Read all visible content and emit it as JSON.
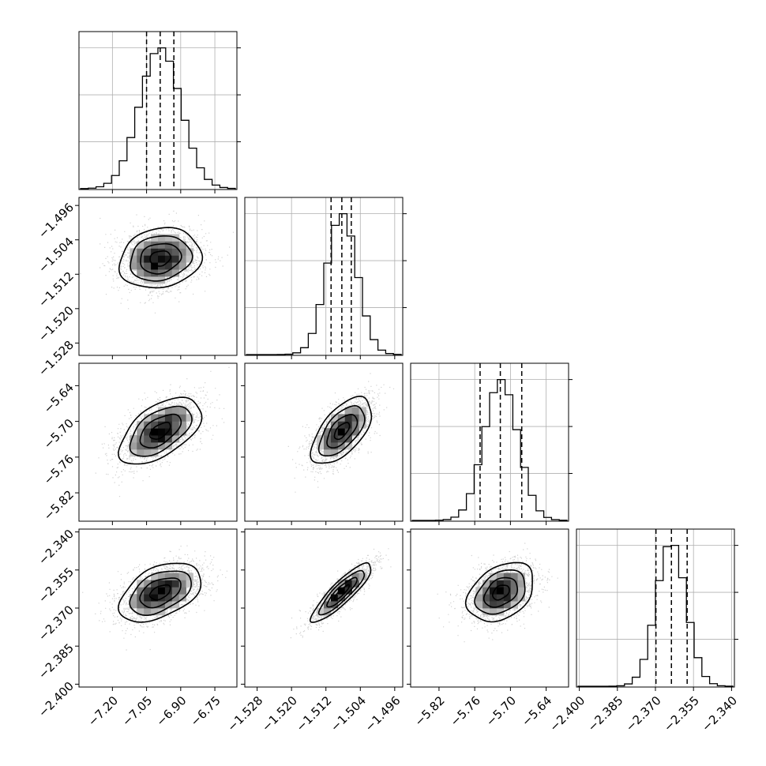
{
  "chart_data": {
    "type": "corner",
    "parameters": [
      {
        "range": [
          -7.34,
          -6.66
        ],
        "ticks": [
          -7.2,
          -7.05,
          -6.9,
          -6.75
        ],
        "tick_labels": [
          "−7.20",
          "−7.05",
          "−6.90",
          "−6.75"
        ],
        "quantiles": [
          -7.05,
          -6.99,
          -6.93
        ],
        "mean": -6.99,
        "sd": 0.09
      },
      {
        "range": [
          -1.5305,
          -1.4945
        ],
        "ticks": [
          -1.528,
          -1.52,
          -1.512,
          -1.504,
          -1.496
        ],
        "tick_labels": [
          "−1.528",
          "−1.520",
          "−1.512",
          "−1.504",
          "−1.496"
        ],
        "quantiles": [
          -1.5108,
          -1.5083,
          -1.5061
        ],
        "mean": -1.5083,
        "sd": 0.0035
      },
      {
        "range": [
          -5.865,
          -5.605
        ],
        "ticks": [
          -5.82,
          -5.76,
          -5.7,
          -5.64
        ],
        "tick_labels": [
          "−5.82",
          "−5.76",
          "−5.70",
          "−5.64"
        ],
        "quantiles": [
          -5.751,
          -5.717,
          -5.681
        ],
        "mean": -5.716,
        "sd": 0.028
      },
      {
        "range": [
          -2.4005,
          -2.3395
        ],
        "ticks": [
          -2.4,
          -2.385,
          -2.37,
          -2.355,
          -2.34
        ],
        "tick_labels": [
          "−2.400",
          "−2.385",
          "−2.370",
          "−2.355",
          "−2.340"
        ],
        "quantiles": [
          -2.3698,
          -2.3637,
          -2.3575
        ],
        "mean": -2.3638,
        "sd": 0.0058
      }
    ],
    "hist_bins": 20,
    "correlations": [
      [
        0,
        1,
        0.15
      ],
      [
        0,
        2,
        0.55
      ],
      [
        0,
        3,
        0.45
      ],
      [
        1,
        2,
        0.6
      ],
      [
        1,
        3,
        0.88
      ],
      [
        2,
        3,
        0.35
      ]
    ],
    "contour_levels_sigma": [
      0.5,
      1.0,
      1.5,
      2.0
    ],
    "grid": true,
    "colors": {
      "histogram": "#000000",
      "quantile_line": "#000000",
      "scatter": "#9a9a9a",
      "density_dark": "#000000",
      "grid": "#b0b0b0"
    }
  }
}
